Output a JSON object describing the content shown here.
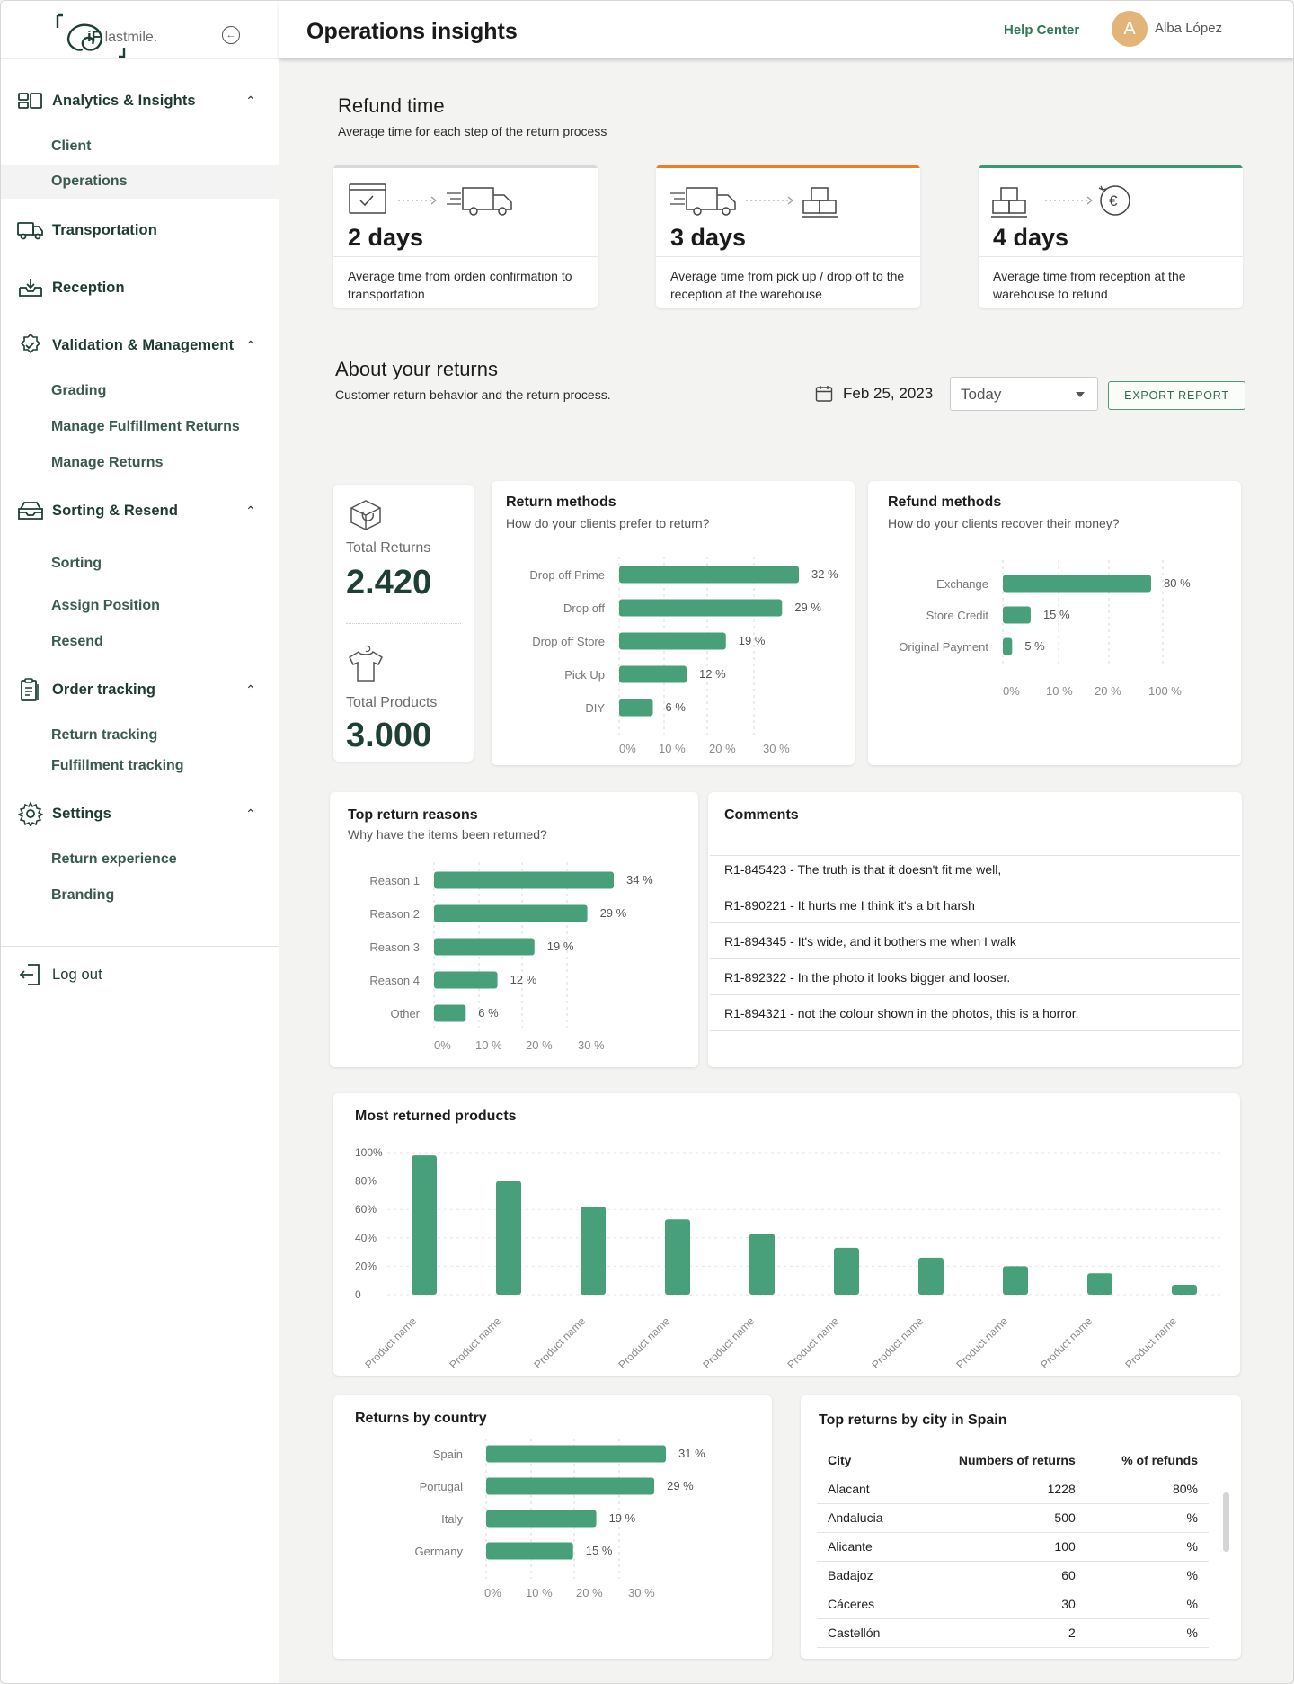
{
  "brand": {
    "logo_mark": "iF",
    "logo_text": "lastmile."
  },
  "header": {
    "title": "Operations insights",
    "help": "Help Center",
    "avatar_initial": "A",
    "user": "Alba López"
  },
  "sidebar": {
    "groups": [
      {
        "label": "Analytics & Insights",
        "icon": "analytics-icon",
        "subs": [
          "Client",
          "Operations"
        ]
      },
      {
        "label": "Transportation",
        "icon": "truck-icon",
        "subs": []
      },
      {
        "label": "Reception",
        "icon": "inbox-download-icon",
        "subs": []
      },
      {
        "label": "Validation & Management",
        "icon": "badge-check-icon",
        "subs": [
          "Grading",
          "Manage Fulfillment Returns",
          "Manage Returns"
        ]
      },
      {
        "label": "Sorting & Resend",
        "icon": "tray-icon",
        "subs": [
          "Sorting",
          "Assign Position",
          "Resend"
        ]
      },
      {
        "label": "Order tracking",
        "icon": "clipboard-icon",
        "subs": [
          "Return tracking",
          "Fulfillment tracking"
        ]
      },
      {
        "label": "Settings",
        "icon": "gear-icon",
        "subs": [
          "Return experience",
          "Branding"
        ]
      }
    ],
    "logout": "Log out",
    "active": "Operations"
  },
  "refund_time": {
    "title": "Refund time",
    "subtitle": "Average time for each step of the return process",
    "steps": [
      {
        "days": "2 days",
        "desc": "Average time from orden confirmation to transportation",
        "accent": "#d9d9d9"
      },
      {
        "days": "3 days",
        "desc": "Average time from pick up / drop off to the reception at the warehouse",
        "accent": "#ef7d22"
      },
      {
        "days": "4 days",
        "desc": "Average time from reception at the warehouse to refund",
        "accent": "#3c9670"
      }
    ]
  },
  "about": {
    "title": "About your returns",
    "subtitle": "Customer return behavior and the return process.",
    "date": "Feb 25, 2023",
    "range": "Today",
    "export": "EXPORT  REPORT"
  },
  "totals": {
    "returns_label": "Total Returns",
    "returns_value": "2.420",
    "products_label": "Total Products",
    "products_value": "3.000"
  },
  "comments": {
    "title": "Comments",
    "items": [
      "R1-845423 - The truth is that it doesn't fit me well,",
      "R1-890221 - It hurts me I think it's a bit harsh",
      "R1-894345 - It's wide, and it bothers me when I walk",
      "R1-892322 - In the photo it looks bigger and looser.",
      "R1-894321 - not the colour shown in the photos, this is a horror."
    ]
  },
  "city_table": {
    "title": "Top  returns by city in Spain",
    "headers": [
      "City",
      "Numbers of returns",
      "% of refunds"
    ],
    "rows": [
      [
        "Alacant",
        "1228",
        "80%"
      ],
      [
        "Andalucia",
        "500",
        "%"
      ],
      [
        "Alicante",
        "100",
        "%"
      ],
      [
        "Badajoz",
        "60",
        "%"
      ],
      [
        "Cáceres",
        "30",
        "%"
      ],
      [
        "Castellón",
        "2",
        "%"
      ]
    ]
  },
  "chart_data": [
    {
      "id": "return_methods",
      "type": "bar",
      "orientation": "horizontal",
      "title": "Return methods",
      "subtitle": "How do your clients prefer to return?",
      "categories": [
        "Drop off Prime",
        "Drop off",
        "Drop off Store",
        "Pick Up",
        "DIY"
      ],
      "values": [
        32,
        29,
        19,
        12,
        6
      ],
      "value_labels": [
        "32 %",
        "29 %",
        "19 %",
        "12 %",
        "6 %"
      ],
      "ticks": [
        "0%",
        "10 %",
        "20 %",
        "30 %"
      ],
      "xlim": [
        0,
        30
      ],
      "color": "#47a07a"
    },
    {
      "id": "refund_methods",
      "type": "bar",
      "orientation": "horizontal",
      "title": "Refund methods",
      "subtitle": "How do your clients recover their money?",
      "categories": [
        "Exchange",
        "Store Credit",
        "Original Payment"
      ],
      "values": [
        80,
        15,
        5
      ],
      "value_labels": [
        "80 %",
        "15 %",
        "5 %"
      ],
      "ticks": [
        "0%",
        "10 %",
        "20 %",
        "100 %"
      ],
      "color": "#47a07a"
    },
    {
      "id": "top_reasons",
      "type": "bar",
      "orientation": "horizontal",
      "title": "Top return reasons",
      "subtitle": "Why have the items been returned?",
      "categories": [
        "Reason 1",
        "Reason 2",
        "Reason 3",
        "Reason 4",
        "Other"
      ],
      "values": [
        34,
        29,
        19,
        12,
        6
      ],
      "value_labels": [
        "34 %",
        "29 %",
        "19 %",
        "12 %",
        "6 %"
      ],
      "ticks": [
        "0%",
        "10 %",
        "20 %",
        "30 %"
      ],
      "xlim": [
        0,
        30
      ],
      "color": "#47a07a"
    },
    {
      "id": "most_returned",
      "type": "bar",
      "orientation": "vertical",
      "title": "Most returned products",
      "categories": [
        "Product name",
        "Product name",
        "Product name",
        "Product name",
        "Product name",
        "Product name",
        "Product name",
        "Product name",
        "Product name",
        "Product name"
      ],
      "values": [
        98,
        80,
        62,
        53,
        43,
        33,
        26,
        20,
        15,
        7
      ],
      "yticks": [
        "0",
        "20%",
        "40%",
        "60%",
        "80%",
        "100%"
      ],
      "ylim": [
        0,
        100
      ],
      "grid": true,
      "color": "#47a07a"
    },
    {
      "id": "by_country",
      "type": "bar",
      "orientation": "horizontal",
      "title": "Returns by country",
      "categories": [
        "Spain",
        "Portugal",
        "Italy",
        "Germany"
      ],
      "values": [
        31,
        29,
        19,
        15
      ],
      "value_labels": [
        "31 %",
        "29 %",
        "19 %",
        "15 %"
      ],
      "ticks": [
        "0%",
        "10 %",
        "20 %",
        "30 %"
      ],
      "xlim": [
        0,
        30
      ],
      "color": "#47a07a"
    }
  ]
}
